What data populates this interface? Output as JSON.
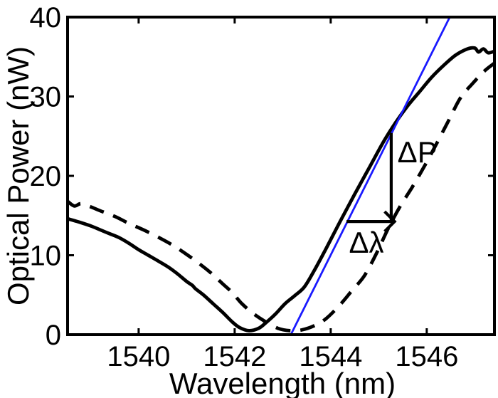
{
  "figure": {
    "background": "#ffffff",
    "axis_color": "#000000"
  },
  "chart_data": {
    "type": "line",
    "title": "",
    "xlabel": "Wavelength (nm)",
    "ylabel": "Optical Power (nW)",
    "xlim": [
      1538.52,
      1547.41
    ],
    "ylim": [
      0,
      40
    ],
    "x_ticks": [
      "1540",
      "1542",
      "1544",
      "1546"
    ],
    "x_tick_values": [
      1540,
      1542,
      1544,
      1546
    ],
    "y_ticks": [
      "0",
      "10",
      "20",
      "30",
      "40"
    ],
    "y_tick_values": [
      0,
      10,
      20,
      30,
      40
    ],
    "grid": false,
    "legend": "none",
    "series": [
      {
        "name": "spectrum-solid",
        "style": "solid",
        "color": "#000000",
        "width": 4.8,
        "points": [
          [
            1538.52,
            14.6
          ],
          [
            1538.75,
            14.2
          ],
          [
            1539.0,
            13.7
          ],
          [
            1539.2,
            13.2
          ],
          [
            1539.4,
            12.7
          ],
          [
            1539.6,
            12.2
          ],
          [
            1539.8,
            11.5
          ],
          [
            1540.0,
            10.7
          ],
          [
            1540.2,
            10.0
          ],
          [
            1540.4,
            9.3
          ],
          [
            1540.62,
            8.5
          ],
          [
            1540.8,
            7.7
          ],
          [
            1541.0,
            6.7
          ],
          [
            1541.12,
            6.2
          ],
          [
            1541.18,
            5.8
          ],
          [
            1541.35,
            5.0
          ],
          [
            1541.55,
            3.9
          ],
          [
            1541.75,
            2.8
          ],
          [
            1541.95,
            1.6
          ],
          [
            1542.1,
            0.9
          ],
          [
            1542.3,
            0.5
          ],
          [
            1542.5,
            0.8
          ],
          [
            1542.65,
            1.5
          ],
          [
            1542.85,
            2.6
          ],
          [
            1543.05,
            3.9
          ],
          [
            1543.25,
            4.9
          ],
          [
            1543.45,
            6.0
          ],
          [
            1543.65,
            8.0
          ],
          [
            1543.9,
            10.8
          ],
          [
            1544.2,
            14.3
          ],
          [
            1544.5,
            17.7
          ],
          [
            1544.8,
            21.0
          ],
          [
            1545.1,
            24.3
          ],
          [
            1545.35,
            26.7
          ],
          [
            1545.6,
            28.8
          ],
          [
            1545.85,
            30.6
          ],
          [
            1546.1,
            32.4
          ],
          [
            1546.35,
            33.9
          ],
          [
            1546.6,
            35.2
          ],
          [
            1546.85,
            36.0
          ],
          [
            1547.0,
            36.1
          ],
          [
            1547.08,
            35.6
          ],
          [
            1547.18,
            36.0
          ],
          [
            1547.28,
            35.5
          ],
          [
            1547.41,
            35.7
          ]
        ]
      },
      {
        "name": "spectrum-dashed",
        "style": "dashed",
        "color": "#000000",
        "width": 4.8,
        "points": [
          [
            1538.52,
            16.8
          ],
          [
            1538.66,
            16.2
          ],
          [
            1538.8,
            16.5
          ],
          [
            1539.0,
            16.1
          ],
          [
            1539.2,
            15.6
          ],
          [
            1539.5,
            14.9
          ],
          [
            1539.8,
            14.0
          ],
          [
            1540.1,
            13.2
          ],
          [
            1540.4,
            12.3
          ],
          [
            1540.7,
            11.3
          ],
          [
            1541.0,
            10.1
          ],
          [
            1541.25,
            9.0
          ],
          [
            1541.5,
            7.8
          ],
          [
            1541.75,
            6.4
          ],
          [
            1541.95,
            5.3
          ],
          [
            1542.15,
            3.9
          ],
          [
            1542.4,
            2.6
          ],
          [
            1542.65,
            1.6
          ],
          [
            1542.9,
            0.8
          ],
          [
            1543.15,
            0.5
          ],
          [
            1543.4,
            0.6
          ],
          [
            1543.65,
            1.1
          ],
          [
            1543.9,
            2.0
          ],
          [
            1544.2,
            3.8
          ],
          [
            1544.45,
            5.6
          ],
          [
            1544.7,
            7.4
          ],
          [
            1544.95,
            10.2
          ],
          [
            1545.2,
            13.4
          ],
          [
            1545.45,
            16.2
          ],
          [
            1545.7,
            18.6
          ],
          [
            1545.95,
            21.2
          ],
          [
            1546.2,
            24.0
          ],
          [
            1546.45,
            26.9
          ],
          [
            1546.7,
            29.8
          ],
          [
            1546.95,
            31.6
          ],
          [
            1547.2,
            33.2
          ],
          [
            1547.41,
            34.2
          ]
        ]
      },
      {
        "name": "linear-fit-line",
        "style": "solid",
        "color": "#1a1aff",
        "width": 2.8,
        "points": [
          [
            1543.17,
            0
          ],
          [
            1546.48,
            40
          ]
        ]
      }
    ],
    "annotations": {
      "delta_p": {
        "label": "ΔP",
        "x": 1545.26,
        "y_from": 14.25,
        "y_to": 25.4,
        "label_x": 1545.39,
        "label_y": 21.7
      },
      "delta_lambda": {
        "label": "Δλ",
        "y": 14.25,
        "x_from": 1544.33,
        "x_to": 1545.33,
        "label_x": 1544.38,
        "label_y": 10.3
      }
    }
  }
}
